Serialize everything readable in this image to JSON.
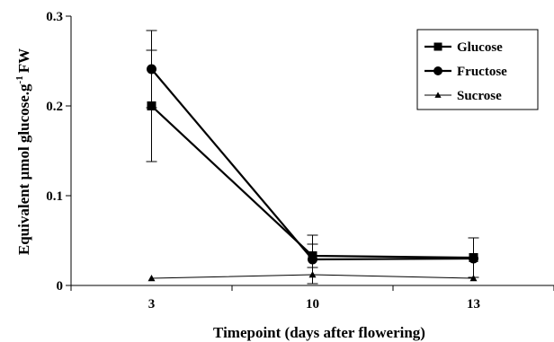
{
  "chart_data": {
    "type": "line",
    "xlabel": "Timepoint (days after flowering)",
    "ylabel_main": "Equivalent µmol glucose.g",
    "ylabel_sup": "-1",
    "ylabel_tail": "FW",
    "categories": [
      "3",
      "10",
      "13"
    ],
    "ylim": [
      0,
      0.3
    ],
    "yticks": [
      "0",
      "0.1",
      "0.2",
      "0.3"
    ],
    "yticks_values": [
      0,
      0.1,
      0.2,
      0.3
    ],
    "grid": false,
    "legend_position": "top-right",
    "series": [
      {
        "name": "Glucose",
        "marker": "square",
        "values": [
          0.2,
          0.033,
          0.031
        ],
        "errors": [
          0.062,
          0.013,
          0.022
        ]
      },
      {
        "name": "Fructose",
        "marker": "circle",
        "values": [
          0.241,
          0.029,
          0.03
        ],
        "errors": [
          0.043,
          0.027,
          0.0
        ]
      },
      {
        "name": "Sucrose",
        "marker": "triangle",
        "values": [
          0.008,
          0.012,
          0.008
        ],
        "errors": [
          0.0,
          0.0,
          0.0
        ]
      }
    ]
  }
}
